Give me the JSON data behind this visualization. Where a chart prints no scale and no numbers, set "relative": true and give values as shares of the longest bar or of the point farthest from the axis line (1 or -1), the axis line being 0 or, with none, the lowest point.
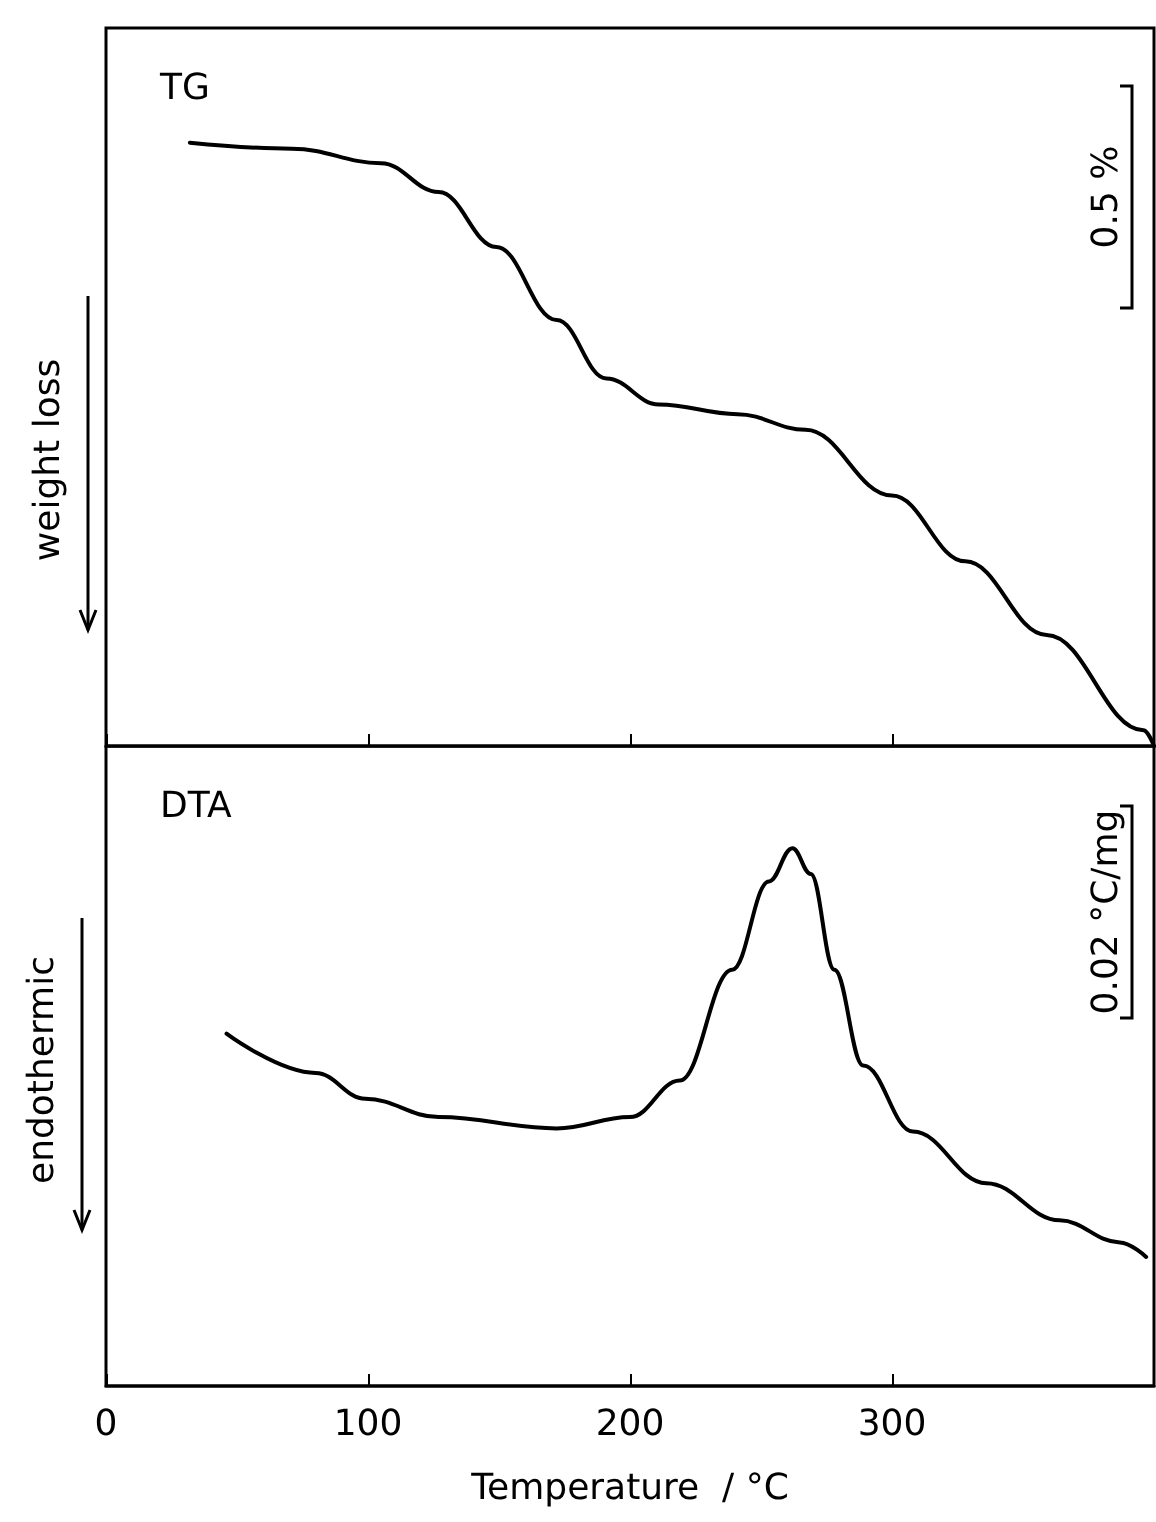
{
  "chart_data": [
    {
      "type": "line",
      "title": "TG",
      "ylabel": "weight loss",
      "relative": true,
      "color": "#000000",
      "annotations": [
        "0.5 %"
      ],
      "x": [
        32,
        71,
        105,
        127,
        149,
        172,
        191,
        211,
        241,
        267,
        300,
        328,
        359,
        396,
        400
      ],
      "values": [
        1.0,
        0.99,
        0.966,
        0.918,
        0.827,
        0.706,
        0.609,
        0.566,
        0.55,
        0.524,
        0.415,
        0.306,
        0.184,
        0.026,
        0
      ],
      "xlim": [
        0,
        400
      ],
      "xticks": [
        {
          "value": 0,
          "label": null
        },
        {
          "value": 100,
          "label": null
        },
        {
          "value": 200,
          "label": null
        },
        {
          "value": 300,
          "label": null
        }
      ],
      "tick_labels": false
    },
    {
      "type": "line",
      "title": "DTA",
      "ylabel": "endothermic",
      "xlabel": "Temperature  / °C",
      "relative": true,
      "color": "#000000",
      "annotations": [
        "0.02 °C/mg"
      ],
      "x": [
        46,
        80,
        99,
        127,
        172,
        200,
        219,
        239,
        253,
        262,
        269,
        278,
        289,
        308,
        336,
        364,
        387,
        397
      ],
      "values": [
        0.655,
        0.582,
        0.534,
        0.5,
        0.479,
        0.5,
        0.568,
        0.774,
        0.938,
        1.0,
        0.952,
        0.774,
        0.596,
        0.473,
        0.377,
        0.308,
        0.267,
        0.24
      ],
      "xlim": [
        0,
        400
      ],
      "xticks": [
        0,
        100,
        200,
        300
      ],
      "tick_labels": "x"
    }
  ]
}
